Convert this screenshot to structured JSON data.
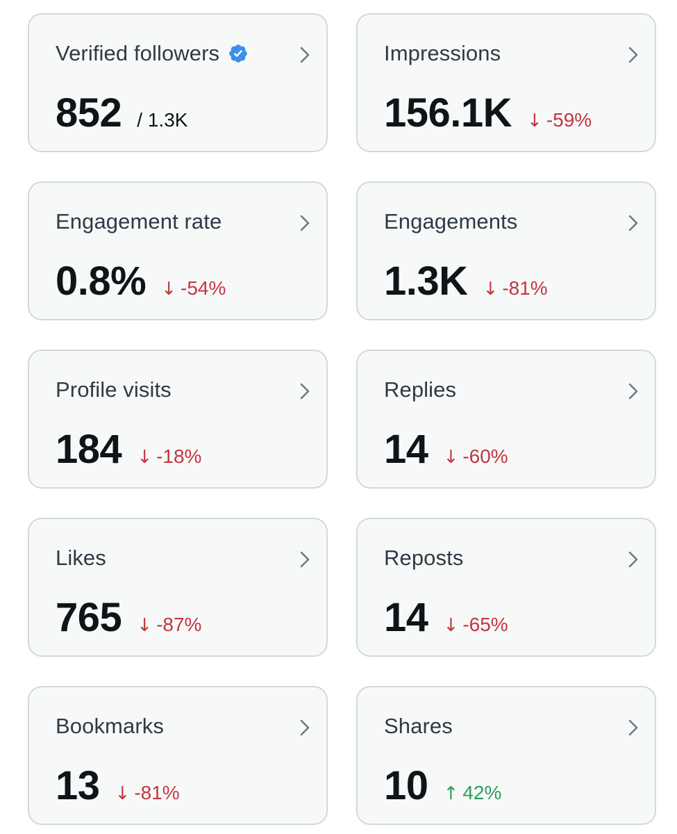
{
  "colors": {
    "card_background": "#f7f9f9",
    "card_border": "#cfd9de",
    "negative": "#c2363f",
    "positive": "#2e9b5d",
    "verified": "#3b8fe8"
  },
  "cards": [
    {
      "title": "Verified followers",
      "value": "852",
      "secondary": "/ 1.3K",
      "verified": true
    },
    {
      "title": "Impressions",
      "value": "156.1K",
      "change": "-59%",
      "direction": "down"
    },
    {
      "title": "Engagement rate",
      "value": "0.8%",
      "change": "-54%",
      "direction": "down"
    },
    {
      "title": "Engagements",
      "value": "1.3K",
      "change": "-81%",
      "direction": "down"
    },
    {
      "title": "Profile visits",
      "value": "184",
      "change": "-18%",
      "direction": "down"
    },
    {
      "title": "Replies",
      "value": "14",
      "change": "-60%",
      "direction": "down"
    },
    {
      "title": "Likes",
      "value": "765",
      "change": "-87%",
      "direction": "down"
    },
    {
      "title": "Reposts",
      "value": "14",
      "change": "-65%",
      "direction": "down"
    },
    {
      "title": "Bookmarks",
      "value": "13",
      "change": "-81%",
      "direction": "down"
    },
    {
      "title": "Shares",
      "value": "10",
      "change": "42%",
      "direction": "up"
    }
  ],
  "arrows": {
    "down": "↓",
    "up": "↑"
  }
}
